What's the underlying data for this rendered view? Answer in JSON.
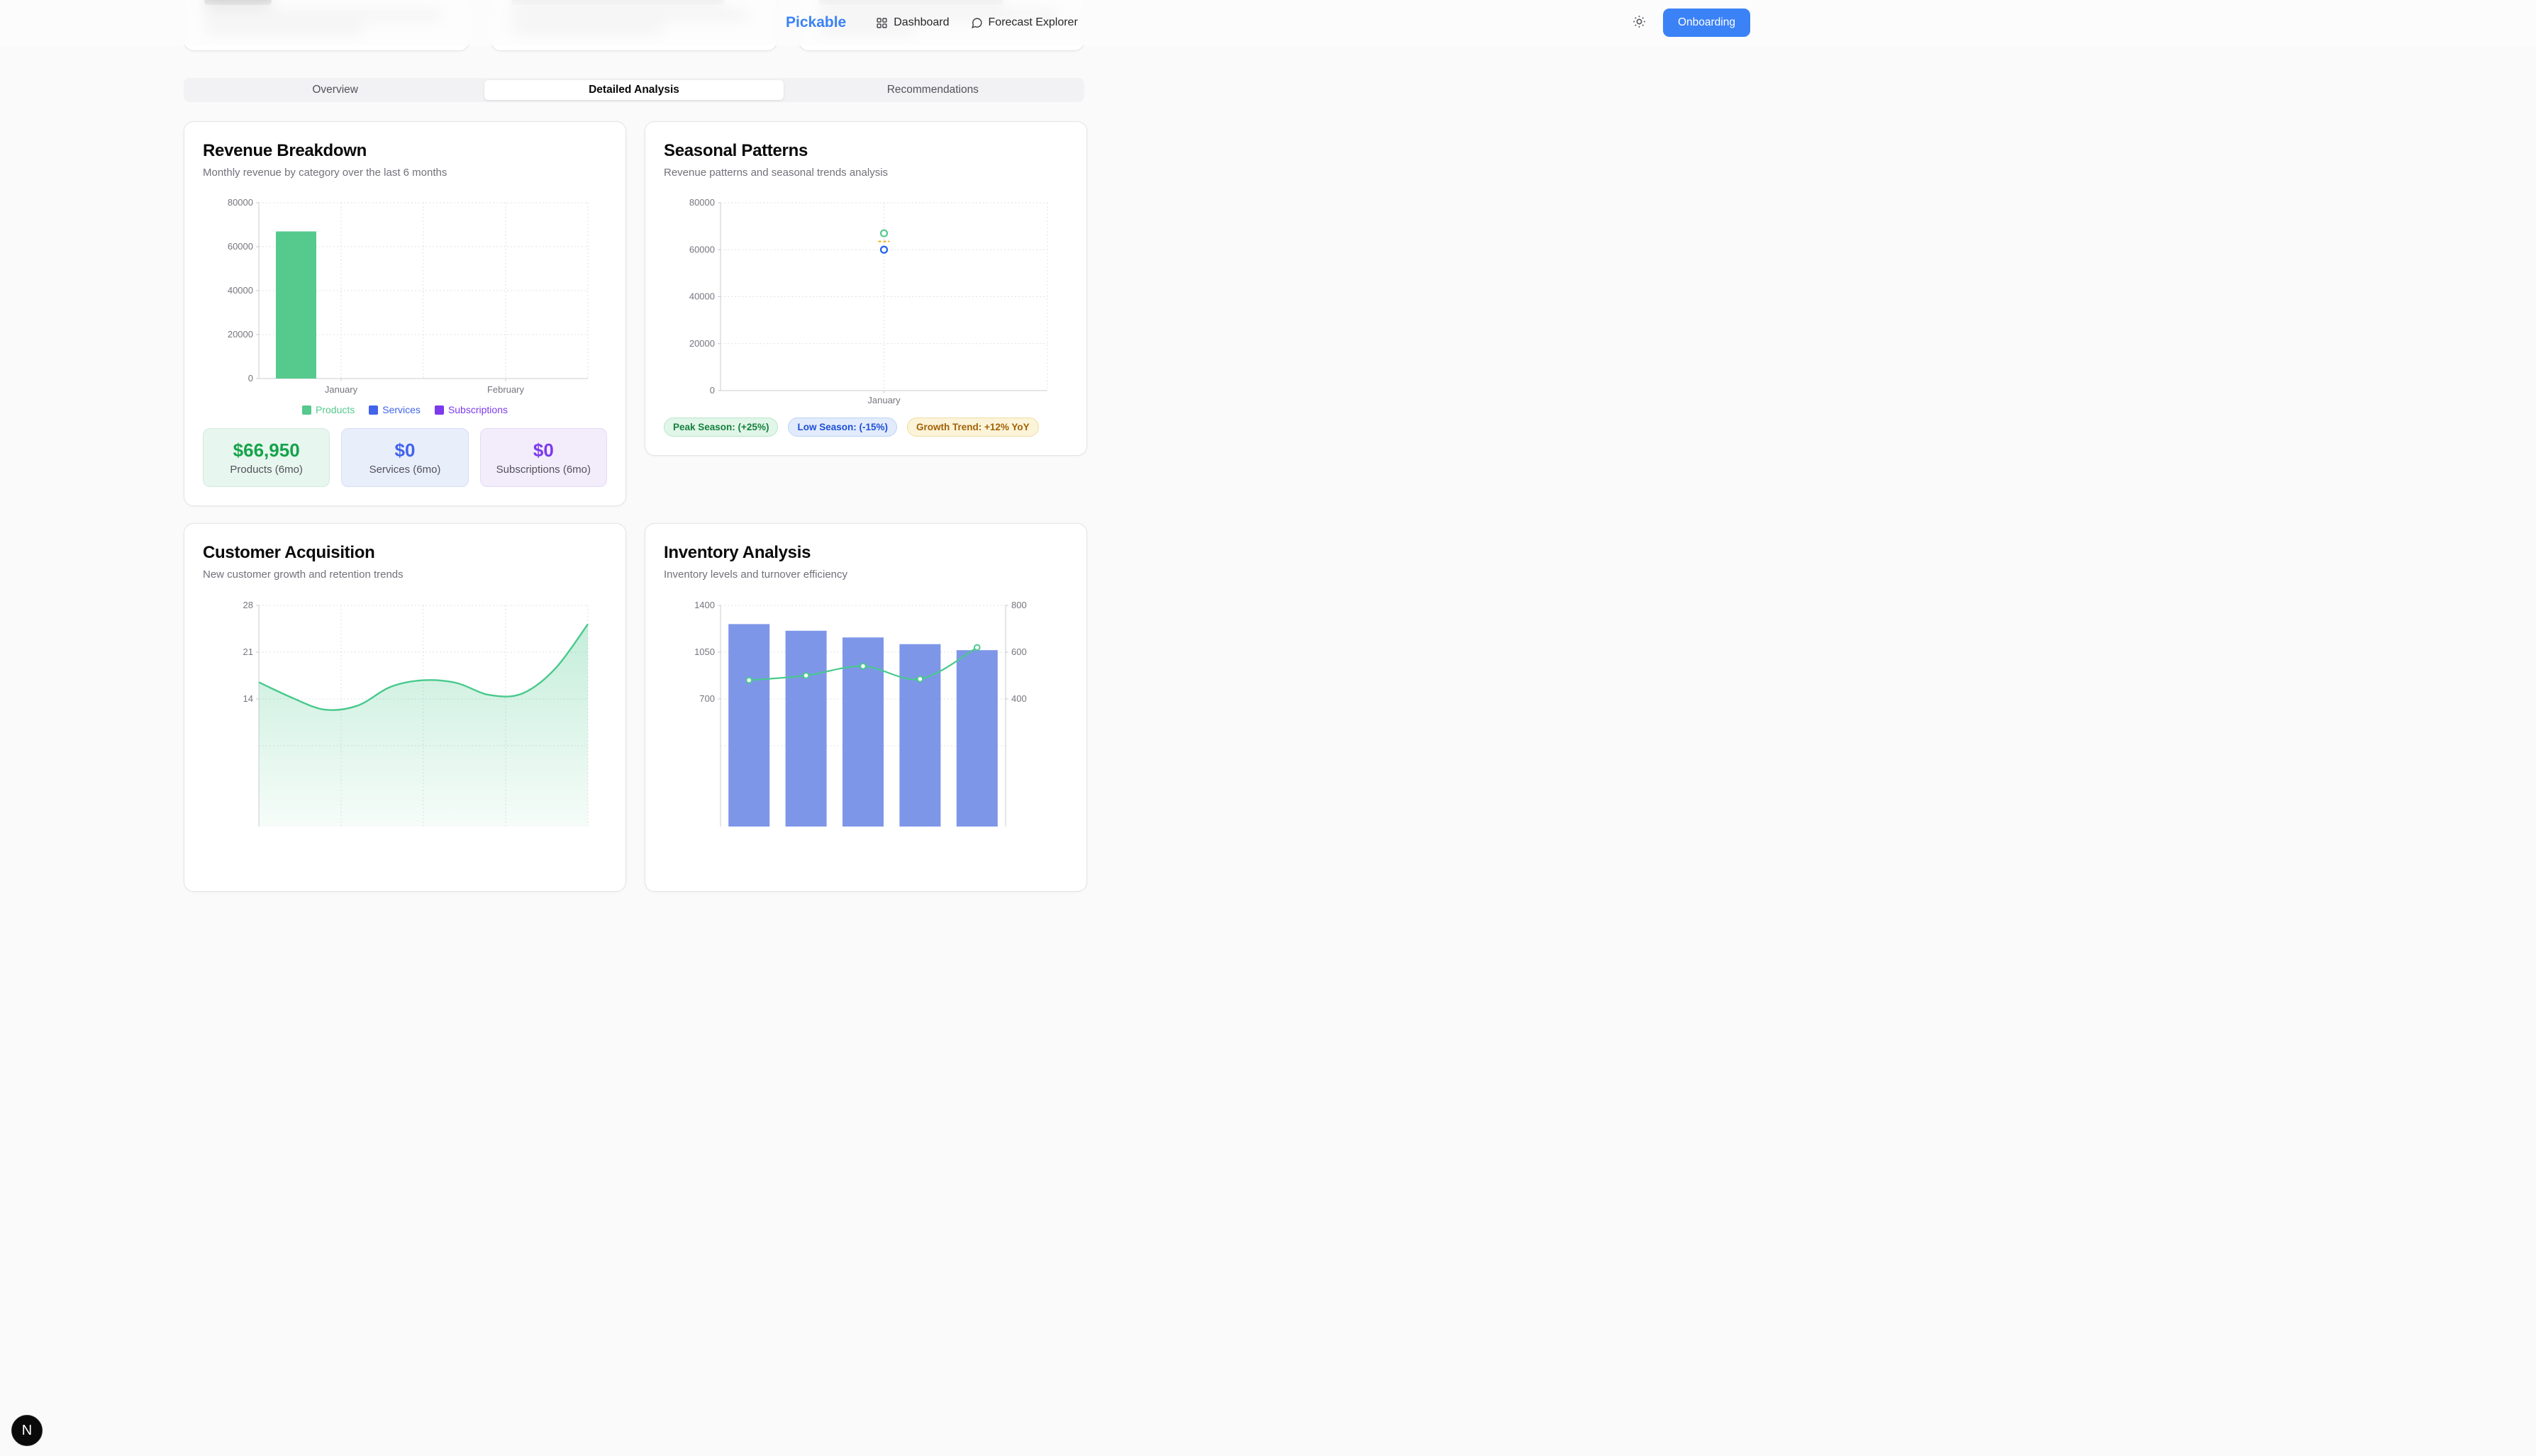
{
  "brand": "Pickable",
  "nav": {
    "dashboard": "Dashboard",
    "forecast_explorer": "Forecast Explorer",
    "onboarding": "Onboarding"
  },
  "tabs": {
    "overview": "Overview",
    "detailed_analysis": "Detailed Analysis",
    "recommendations": "Recommendations",
    "active": "Detailed Analysis"
  },
  "revenue_card": {
    "title": "Revenue Breakdown",
    "subtitle": "Monthly revenue by category over the last 6 months",
    "stats": [
      {
        "value": "$66,950",
        "label": "Products (6mo)",
        "theme": "green"
      },
      {
        "value": "$0",
        "label": "Services (6mo)",
        "theme": "blue"
      },
      {
        "value": "$0",
        "label": "Subscriptions (6mo)",
        "theme": "purple"
      }
    ]
  },
  "seasonal_card": {
    "title": "Seasonal Patterns",
    "subtitle": "Revenue patterns and seasonal trends analysis",
    "badges": [
      {
        "label": "Peak Season: (+25%)",
        "theme": "green"
      },
      {
        "label": "Low Season: (-15%)",
        "theme": "blue"
      },
      {
        "label": "Growth Trend: +12% YoY",
        "theme": "yellow"
      }
    ]
  },
  "customer_card": {
    "title": "Customer Acquisition",
    "subtitle": "New customer growth and retention trends"
  },
  "inventory_card": {
    "title": "Inventory Analysis",
    "subtitle": "Inventory levels and turnover efficiency"
  },
  "floating_button": "N",
  "colors": {
    "accent_blue": "#3b82f6",
    "products_green": "#56c98d",
    "services_blue": "#4263eb",
    "subscriptions_purple": "#7c3aed",
    "inventory_bar_blue": "#7e96e8",
    "trend_yellow": "#eab308",
    "scatter_low_blue": "#2563eb",
    "stat_green_text": "#16a34a"
  },
  "chart_data": [
    {
      "id": "revenue-breakdown",
      "type": "bar",
      "title": "Revenue Breakdown",
      "categories": [
        "January",
        "February"
      ],
      "series": [
        {
          "name": "Products",
          "color": "#56c98d",
          "values": [
            66950,
            0
          ]
        },
        {
          "name": "Services",
          "color": "#4263eb",
          "values": [
            0,
            0
          ]
        },
        {
          "name": "Subscriptions",
          "color": "#7c3aed",
          "values": [
            0,
            0
          ]
        }
      ],
      "ylim": [
        0,
        80000
      ],
      "yticks": [
        0,
        20000,
        40000,
        60000,
        80000
      ],
      "grid": "dotted",
      "legend_position": "bottom"
    },
    {
      "id": "seasonal-patterns",
      "type": "scatter",
      "title": "Seasonal Patterns",
      "categories": [
        "January"
      ],
      "series": [
        {
          "name": "green-point",
          "color": "#56c98d",
          "marker": "circle",
          "values": [
            67000
          ]
        },
        {
          "name": "yellow-dash",
          "color": "#eab308",
          "marker": "dash",
          "values": [
            63500
          ]
        },
        {
          "name": "blue-point",
          "color": "#2563eb",
          "marker": "circle",
          "values": [
            60000
          ]
        }
      ],
      "ylim": [
        0,
        80000
      ],
      "yticks": [
        0,
        20000,
        40000,
        60000,
        80000
      ],
      "grid": "dotted"
    },
    {
      "id": "customer-acquisition",
      "type": "area",
      "title": "Customer Acquisition",
      "color": "#49c98d",
      "values": [
        16.5,
        14.2,
        12.4,
        13.0,
        15.8,
        16.8,
        16.4,
        14.6,
        14.8,
        18.5,
        25.2
      ],
      "yticks": [
        28,
        21,
        14
      ],
      "ytick_step": 7,
      "ytop": 28,
      "grid": "dotted",
      "clipped_bottom": true
    },
    {
      "id": "inventory-analysis",
      "type": "bar+line",
      "title": "Inventory Analysis",
      "bar_series": {
        "color": "#7e96e8",
        "values": [
          1260,
          1210,
          1160,
          1110,
          1065
        ]
      },
      "line_series": {
        "color": "#49c98d",
        "axis": "right",
        "values": [
          480,
          500,
          540,
          485,
          620
        ]
      },
      "left_yticks": [
        1400,
        1050,
        700
      ],
      "right_yticks": [
        800,
        600,
        400
      ],
      "grid": "dotted",
      "clipped_bottom": true
    }
  ]
}
